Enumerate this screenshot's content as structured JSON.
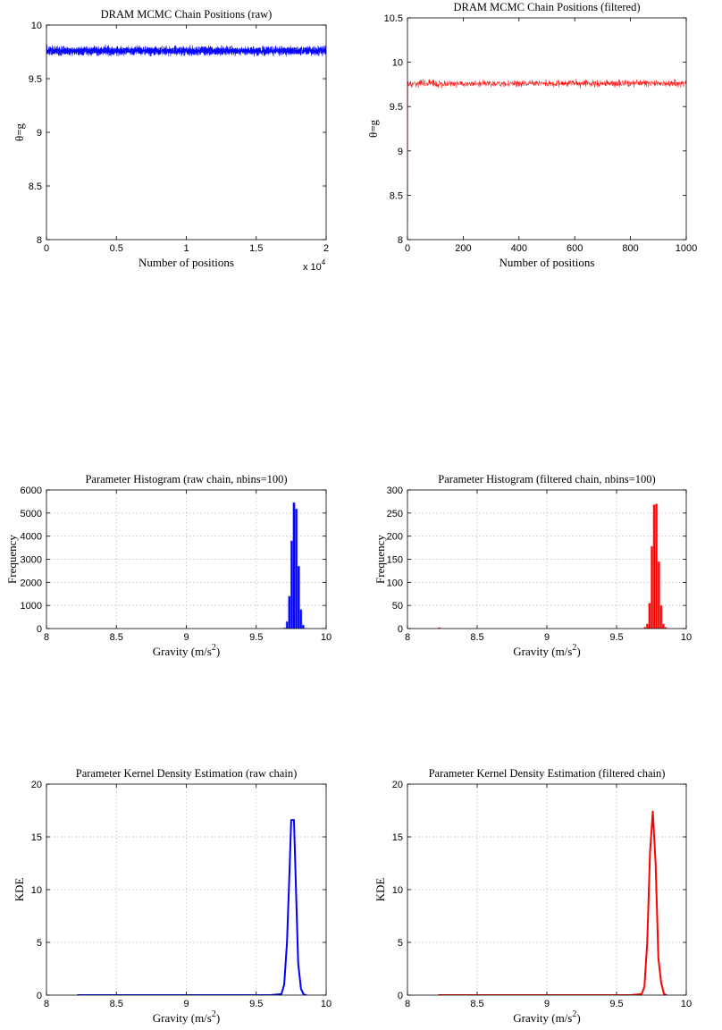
{
  "chart_data": [
    {
      "id": "raw-trace",
      "type": "line",
      "title": "DRAM MCMC Chain Positions (raw)",
      "xlabel": "Number of positions",
      "ylabel": "θ=g",
      "xlim": [
        0,
        20000
      ],
      "ylim": [
        8,
        10
      ],
      "xticks": [
        0,
        5000,
        10000,
        15000,
        20000
      ],
      "xtick_labels": [
        "0",
        "0.5",
        "1",
        "1.5",
        "2"
      ],
      "x_multiplier_label": "x 10",
      "x_multiplier_exp": "4",
      "yticks": [
        8,
        8.5,
        9,
        9.5,
        10
      ],
      "ytick_labels": [
        "8",
        "8.5",
        "9",
        "9.5",
        "10"
      ],
      "grid": false,
      "color": "#0000ff",
      "series": {
        "n": 20000,
        "mean": 9.76,
        "spread": 0.025,
        "min": 9.66,
        "max": 9.85
      }
    },
    {
      "id": "filtered-trace",
      "type": "line",
      "title": "DRAM MCMC Chain Positions (filtered)",
      "xlabel": "Number of positions",
      "ylabel": "θ=g",
      "xlim": [
        0,
        1000
      ],
      "ylim": [
        8,
        10.5
      ],
      "xticks": [
        0,
        200,
        400,
        600,
        800,
        1000
      ],
      "xtick_labels": [
        "0",
        "200",
        "400",
        "600",
        "800",
        "1000"
      ],
      "yticks": [
        8,
        8.5,
        9,
        9.5,
        10,
        10.5
      ],
      "ytick_labels": [
        "8",
        "8.5",
        "9",
        "9.5",
        "10",
        "10.5"
      ],
      "grid": false,
      "color": "#ff0000",
      "series": {
        "n": 1000,
        "mean": 9.76,
        "spread": 0.025,
        "start": 8.22
      }
    },
    {
      "id": "raw-hist",
      "type": "bar",
      "title": "Parameter Histogram (raw chain, nbins=100)",
      "xlabel": "Gravity (m/s",
      "xlabel_sup": "2",
      "xlabel_end": ")",
      "ylabel": "Frequency",
      "xlim": [
        8,
        10
      ],
      "ylim": [
        0,
        6000
      ],
      "xticks": [
        8,
        8.5,
        9,
        9.5,
        10
      ],
      "xtick_labels": [
        "8",
        "8.5",
        "9",
        "9.5",
        "10"
      ],
      "yticks": [
        0,
        1000,
        2000,
        3000,
        4000,
        5000,
        6000
      ],
      "ytick_labels": [
        "0",
        "1000",
        "2000",
        "3000",
        "4000",
        "5000",
        "6000"
      ],
      "grid": true,
      "color": "#0000ff",
      "bin_width": 0.0163,
      "bins": [
        9.697,
        9.713,
        9.729,
        9.746,
        9.762,
        9.778,
        9.795,
        9.811,
        9.827,
        9.843
      ],
      "values": [
        30,
        300,
        1400,
        3800,
        5450,
        5180,
        2700,
        820,
        150,
        10
      ]
    },
    {
      "id": "filtered-hist",
      "type": "bar",
      "title": "Parameter Histogram (filtered chain, nbins=100)",
      "xlabel": "Gravity (m/s",
      "xlabel_sup": "2",
      "xlabel_end": ")",
      "ylabel": "Frequency",
      "xlim": [
        8,
        10
      ],
      "ylim": [
        0,
        300
      ],
      "xticks": [
        8,
        8.5,
        9,
        9.5,
        10
      ],
      "xtick_labels": [
        "8",
        "8.5",
        "9",
        "9.5",
        "10"
      ],
      "yticks": [
        0,
        50,
        100,
        150,
        200,
        250,
        300
      ],
      "ytick_labels": [
        "0",
        "50",
        "100",
        "150",
        "200",
        "250",
        "300"
      ],
      "grid": true,
      "color": "#ff0000",
      "bin_width": 0.0163,
      "bins": [
        8.22,
        9.697,
        9.713,
        9.729,
        9.746,
        9.762,
        9.778,
        9.795,
        9.811,
        9.827,
        9.843
      ],
      "values": [
        2,
        3,
        10,
        55,
        178,
        268,
        270,
        145,
        50,
        10,
        3
      ]
    },
    {
      "id": "raw-kde",
      "type": "line",
      "title": "Parameter Kernel Density Estimation (raw chain)",
      "xlabel": "Gravity (m/s",
      "xlabel_sup": "2",
      "xlabel_end": ")",
      "ylabel": "KDE",
      "xlim": [
        8,
        10
      ],
      "ylim": [
        0,
        20
      ],
      "xticks": [
        8,
        8.5,
        9,
        9.5,
        10
      ],
      "xtick_labels": [
        "8",
        "8.5",
        "9",
        "9.5",
        "10"
      ],
      "yticks": [
        0,
        5,
        10,
        15,
        20
      ],
      "ytick_labels": [
        "0",
        "5",
        "10",
        "15",
        "20"
      ],
      "grid": true,
      "color": "#0000ff",
      "x": [
        8.22,
        9.6,
        9.68,
        9.7,
        9.72,
        9.74,
        9.75,
        9.77,
        9.78,
        9.8,
        9.82,
        9.84,
        9.86
      ],
      "y": [
        0,
        0,
        0.1,
        1.0,
        5.0,
        12.5,
        16.6,
        16.6,
        12.0,
        3.0,
        0.6,
        0.05,
        0
      ]
    },
    {
      "id": "filtered-kde",
      "type": "line",
      "title": "Parameter Kernel Density Estimation (filtered chain)",
      "xlabel": "Gravity (m/s",
      "xlabel_sup": "2",
      "xlabel_end": ")",
      "ylabel": "KDE",
      "xlim": [
        8,
        10
      ],
      "ylim": [
        0,
        20
      ],
      "xticks": [
        8,
        8.5,
        9,
        9.5,
        10
      ],
      "xtick_labels": [
        "8",
        "8.5",
        "9",
        "9.5",
        "10"
      ],
      "yticks": [
        0,
        5,
        10,
        15,
        20
      ],
      "ytick_labels": [
        "0",
        "5",
        "10",
        "15",
        "20"
      ],
      "grid": true,
      "color": "#ff0000",
      "x": [
        8.22,
        9.6,
        9.68,
        9.7,
        9.72,
        9.74,
        9.76,
        9.78,
        9.8,
        9.82,
        9.84,
        9.86
      ],
      "y": [
        0,
        0,
        0.1,
        0.8,
        5.0,
        13.5,
        17.4,
        12.5,
        3.5,
        1.2,
        0.1,
        0
      ]
    }
  ]
}
